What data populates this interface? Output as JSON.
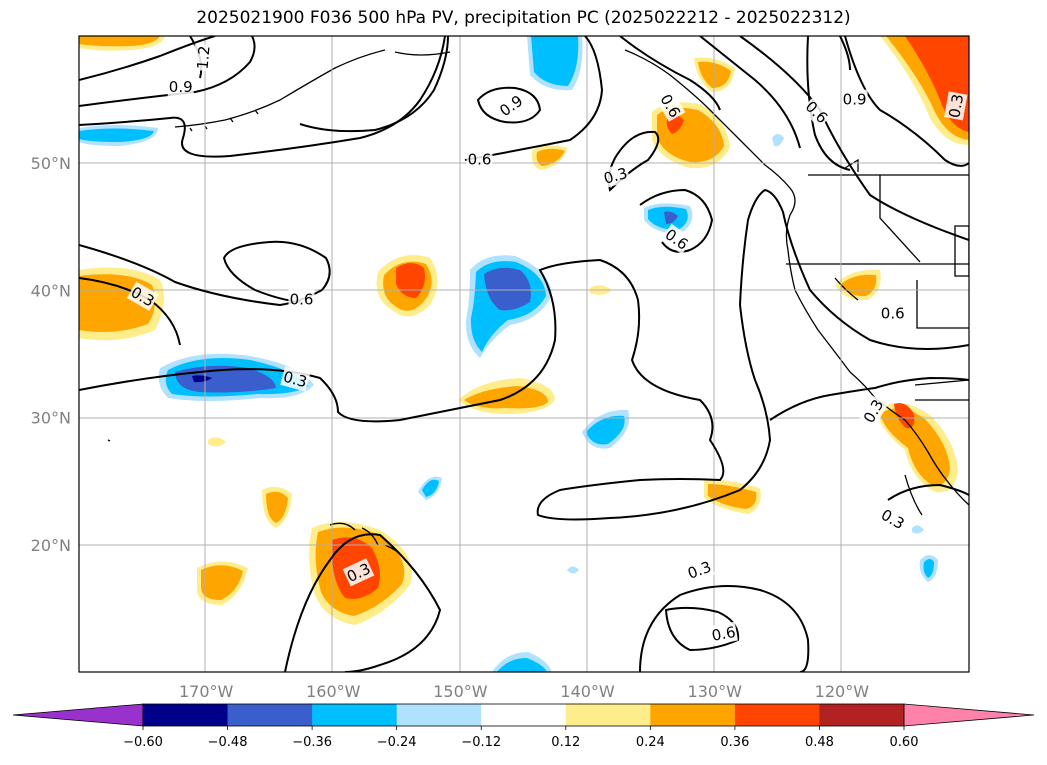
{
  "chart_data": {
    "type": "contour_map",
    "title": "2025021900 F036 500 hPa PV, precipitation PC (2025022212 - 2025022312)",
    "projection": "PlateCarree",
    "lon_range": [
      -180,
      -110
    ],
    "lat_range": [
      10,
      60
    ],
    "lat_ticks": [
      {
        "value": 50,
        "label": "50°N"
      },
      {
        "value": 40,
        "label": "40°N"
      },
      {
        "value": 30,
        "label": "30°N"
      },
      {
        "value": 20,
        "label": "20°N"
      }
    ],
    "lon_ticks": [
      {
        "value": -170,
        "label": "170°W"
      },
      {
        "value": -160,
        "label": "160°W"
      },
      {
        "value": -150,
        "label": "150°W"
      },
      {
        "value": -140,
        "label": "140°W"
      },
      {
        "value": -130,
        "label": "130°W"
      },
      {
        "value": -120,
        "label": "120°W"
      }
    ],
    "grid": true,
    "colorbar": {
      "orientation": "horizontal",
      "extend": "both",
      "boundaries": [
        -0.6,
        -0.48,
        -0.36,
        -0.24,
        -0.12,
        0.12,
        0.24,
        0.36,
        0.48,
        0.6
      ],
      "tick_labels": [
        "−0.60",
        "−0.48",
        "−0.36",
        "−0.24",
        "−0.12",
        "0.12",
        "0.24",
        "0.36",
        "0.48",
        "0.60"
      ],
      "colors": [
        "#9932cc",
        "#00008b",
        "#3a5fcd",
        "#00bfff",
        "#b0e2ff",
        "#ffffff",
        "#ffec8b",
        "#ffa500",
        "#ff4500",
        "#b22222",
        "#ff82ab"
      ]
    },
    "pv_contour_levels": [
      0.3,
      0.6,
      0.9,
      1.2
    ],
    "pv_contour_labels": [
      {
        "text": "1.2",
        "lon": -170.2,
        "lat": 58.3,
        "rot": -85
      },
      {
        "text": "0.9",
        "lon": -172.0,
        "lat": 56.0,
        "rot": 0
      },
      {
        "text": "0.9",
        "lon": -146.0,
        "lat": 54.5,
        "rot": -35
      },
      {
        "text": "0.6",
        "lon": -148.5,
        "lat": 50.3,
        "rot": 0
      },
      {
        "text": "0.3",
        "lon": -137.8,
        "lat": 49.0,
        "rot": -15
      },
      {
        "text": "0.6",
        "lon": -133.5,
        "lat": 54.5,
        "rot": 60
      },
      {
        "text": "0.6",
        "lon": -122.0,
        "lat": 54.0,
        "rot": 45
      },
      {
        "text": "0.9",
        "lon": -119.0,
        "lat": 55.0,
        "rot": 0
      },
      {
        "text": "0.3",
        "lon": -111.0,
        "lat": 54.5,
        "rot": -80
      },
      {
        "text": "0.6",
        "lon": -133.0,
        "lat": 44.0,
        "rot": 35
      },
      {
        "text": "0.3",
        "lon": -175.0,
        "lat": 39.5,
        "rot": 30
      },
      {
        "text": "0.6",
        "lon": -162.5,
        "lat": 39.3,
        "rot": 0
      },
      {
        "text": "0.3",
        "lon": -163.0,
        "lat": 33.0,
        "rot": 15
      },
      {
        "text": "0.6",
        "lon": -116.0,
        "lat": 38.2,
        "rot": 0
      },
      {
        "text": "0.3",
        "lon": -117.5,
        "lat": 30.5,
        "rot": -60
      },
      {
        "text": "0.3",
        "lon": -116.0,
        "lat": 22.0,
        "rot": 30
      },
      {
        "text": "0.3",
        "lon": -158.0,
        "lat": 17.8,
        "rot": -25
      },
      {
        "text": "0.3",
        "lon": -131.2,
        "lat": 18.0,
        "rot": -20
      },
      {
        "text": "0.6",
        "lon": -129.3,
        "lat": 13.0,
        "rot": -10
      }
    ]
  }
}
